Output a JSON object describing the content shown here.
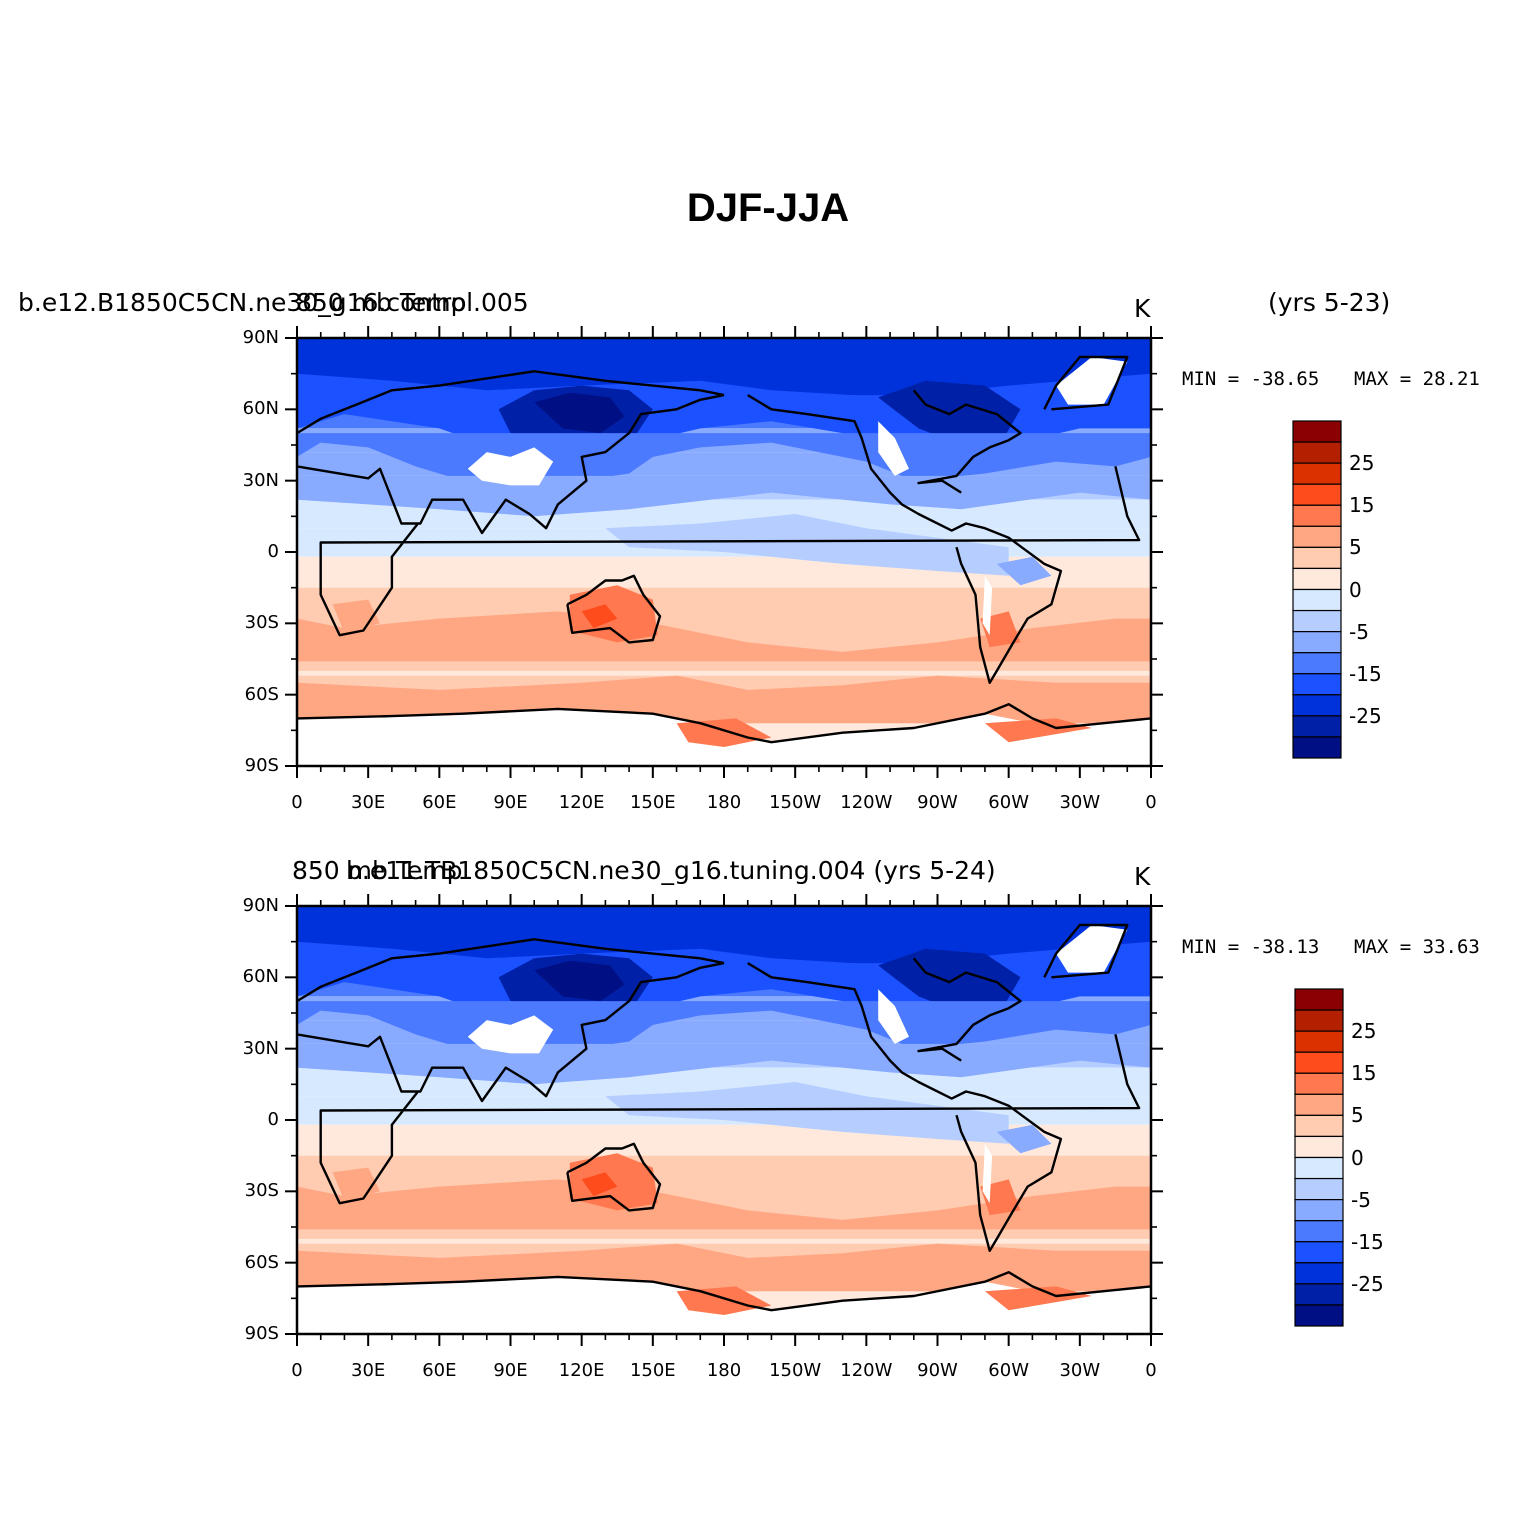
{
  "title": "DJF-JJA",
  "panels": [
    {
      "id": "top",
      "left_label": "b.e12.B1850C5CN.ne30_g16.control.005",
      "center_label": "850 mb Temp",
      "years": "(yrs 5-23)",
      "units": "K",
      "min_label": "MIN = -38.65",
      "max_label": "MAX =  28.21"
    },
    {
      "id": "bottom",
      "left_label": "b.e11.TB1850C5CN.ne30_g16.tuning.004 (yrs 5-24)",
      "center_label": "850 mb Temp",
      "years": "",
      "units": "K",
      "min_label": "MIN = -38.13",
      "max_label": "MAX =  33.63"
    }
  ],
  "axes": {
    "lat_ticks": [
      "90N",
      "60N",
      "30N",
      "0",
      "30S",
      "60S",
      "90S"
    ],
    "lon_ticks": [
      "0",
      "30E",
      "60E",
      "90E",
      "120E",
      "150E",
      "180",
      "150W",
      "120W",
      "90W",
      "60W",
      "30W",
      "0"
    ]
  },
  "colorbar": {
    "levels": [
      -30,
      -25,
      -20,
      -15,
      -10,
      -5,
      0,
      5,
      10,
      15,
      20,
      25,
      30
    ],
    "labels": [
      "25",
      "15",
      "5",
      "0",
      "-5",
      "-15",
      "-25"
    ],
    "colors": [
      "#8b0000",
      "#b22000",
      "#db3000",
      "#ff4c1d",
      "#ff784f",
      "#ffa782",
      "#ffcbb1",
      "#ffe8dc",
      "#d7e9ff",
      "#b5ceff",
      "#88aaff",
      "#4b7aff",
      "#1c51ff",
      "#0032dc",
      "#0021a7",
      "#000f84"
    ]
  },
  "chart_data": {
    "type": "heatmap",
    "title": "DJF-JJA",
    "variable": "850 mb Temp",
    "units": "K",
    "panels": [
      {
        "case": "b.e12.B1850C5CN.ne30_g16.control.005",
        "years": "(yrs 5-23)",
        "min": -38.65,
        "max": 28.21
      },
      {
        "case": "b.e11.TB1850C5CN.ne30_g16.tuning.004",
        "years": "(yrs 5-24)",
        "min": -38.13,
        "max": 33.63
      }
    ],
    "xlim": [
      0,
      360
    ],
    "ylim": [
      -90,
      90
    ],
    "levels": [
      -30,
      -25,
      -20,
      -15,
      -10,
      -5,
      0,
      5,
      10,
      15,
      20,
      25,
      30
    ],
    "grid": false
  }
}
